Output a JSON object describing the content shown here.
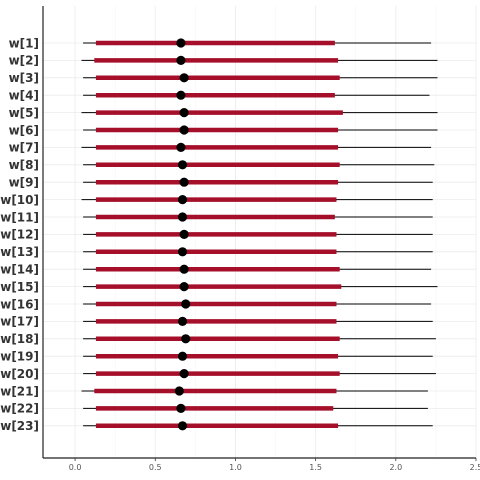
{
  "chart_data": {
    "type": "interval",
    "title": "",
    "xlabel": "",
    "ylabel": "",
    "xlim": [
      -0.2,
      2.5
    ],
    "x_ticks": [
      0.0,
      0.5,
      1.0,
      1.5,
      2.0,
      2.5
    ],
    "x_tick_labels": [
      "0.0",
      "0.5",
      "1.0",
      "1.5",
      "2.0",
      "2.5"
    ],
    "grid": true,
    "colors": {
      "inner": "#a50f2a",
      "outer": "#000000",
      "point": "#000000"
    },
    "parameters": [
      {
        "label": "w[1]",
        "outer_low": 0.05,
        "inner_low": 0.13,
        "point": 0.66,
        "inner_high": 1.62,
        "outer_high": 2.22
      },
      {
        "label": "w[2]",
        "outer_low": 0.04,
        "inner_low": 0.12,
        "point": 0.66,
        "inner_high": 1.64,
        "outer_high": 2.26
      },
      {
        "label": "w[3]",
        "outer_low": 0.05,
        "inner_low": 0.13,
        "point": 0.68,
        "inner_high": 1.65,
        "outer_high": 2.26
      },
      {
        "label": "w[4]",
        "outer_low": 0.05,
        "inner_low": 0.13,
        "point": 0.66,
        "inner_high": 1.62,
        "outer_high": 2.21
      },
      {
        "label": "w[5]",
        "outer_low": 0.04,
        "inner_low": 0.13,
        "point": 0.68,
        "inner_high": 1.67,
        "outer_high": 2.26
      },
      {
        "label": "w[6]",
        "outer_low": 0.05,
        "inner_low": 0.13,
        "point": 0.68,
        "inner_high": 1.64,
        "outer_high": 2.26
      },
      {
        "label": "w[7]",
        "outer_low": 0.04,
        "inner_low": 0.13,
        "point": 0.66,
        "inner_high": 1.64,
        "outer_high": 2.22
      },
      {
        "label": "w[8]",
        "outer_low": 0.05,
        "inner_low": 0.13,
        "point": 0.67,
        "inner_high": 1.65,
        "outer_high": 2.24
      },
      {
        "label": "w[9]",
        "outer_low": 0.05,
        "inner_low": 0.13,
        "point": 0.68,
        "inner_high": 1.64,
        "outer_high": 2.23
      },
      {
        "label": "w[10]",
        "outer_low": 0.04,
        "inner_low": 0.13,
        "point": 0.67,
        "inner_high": 1.63,
        "outer_high": 2.23
      },
      {
        "label": "w[11]",
        "outer_low": 0.05,
        "inner_low": 0.13,
        "point": 0.67,
        "inner_high": 1.62,
        "outer_high": 2.23
      },
      {
        "label": "w[12]",
        "outer_low": 0.05,
        "inner_low": 0.13,
        "point": 0.68,
        "inner_high": 1.63,
        "outer_high": 2.23
      },
      {
        "label": "w[13]",
        "outer_low": 0.05,
        "inner_low": 0.13,
        "point": 0.67,
        "inner_high": 1.63,
        "outer_high": 2.23
      },
      {
        "label": "w[14]",
        "outer_low": 0.05,
        "inner_low": 0.13,
        "point": 0.68,
        "inner_high": 1.65,
        "outer_high": 2.22
      },
      {
        "label": "w[15]",
        "outer_low": 0.05,
        "inner_low": 0.13,
        "point": 0.68,
        "inner_high": 1.66,
        "outer_high": 2.26
      },
      {
        "label": "w[16]",
        "outer_low": 0.05,
        "inner_low": 0.13,
        "point": 0.69,
        "inner_high": 1.63,
        "outer_high": 2.22
      },
      {
        "label": "w[17]",
        "outer_low": 0.05,
        "inner_low": 0.13,
        "point": 0.67,
        "inner_high": 1.63,
        "outer_high": 2.23
      },
      {
        "label": "w[18]",
        "outer_low": 0.05,
        "inner_low": 0.13,
        "point": 0.69,
        "inner_high": 1.65,
        "outer_high": 2.25
      },
      {
        "label": "w[19]",
        "outer_low": 0.05,
        "inner_low": 0.13,
        "point": 0.67,
        "inner_high": 1.64,
        "outer_high": 2.23
      },
      {
        "label": "w[20]",
        "outer_low": 0.05,
        "inner_low": 0.13,
        "point": 0.68,
        "inner_high": 1.65,
        "outer_high": 2.25
      },
      {
        "label": "w[21]",
        "outer_low": 0.04,
        "inner_low": 0.12,
        "point": 0.65,
        "inner_high": 1.63,
        "outer_high": 2.2
      },
      {
        "label": "w[22]",
        "outer_low": 0.05,
        "inner_low": 0.13,
        "point": 0.66,
        "inner_high": 1.61,
        "outer_high": 2.2
      },
      {
        "label": "w[23]",
        "outer_low": 0.05,
        "inner_low": 0.13,
        "point": 0.67,
        "inner_high": 1.64,
        "outer_high": 2.23
      }
    ]
  }
}
